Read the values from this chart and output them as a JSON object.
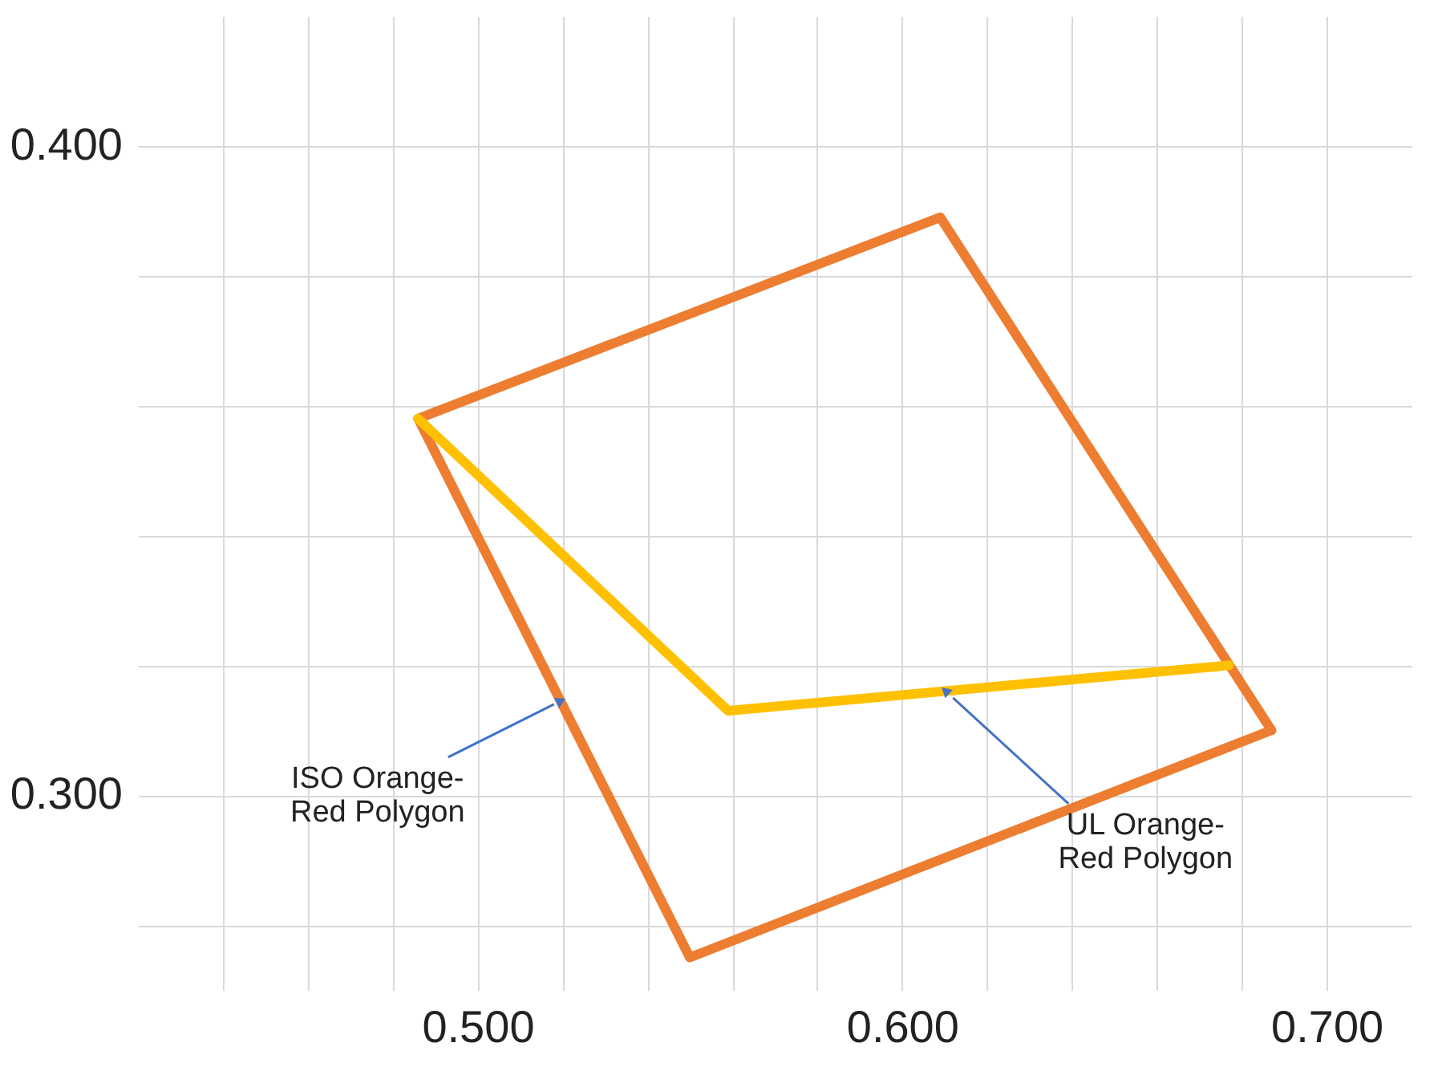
{
  "chart_data": {
    "type": "line",
    "xlim": [
      0.42,
      0.72
    ],
    "ylim": [
      0.27,
      0.42
    ],
    "xticks": [
      {
        "value": 0.44,
        "label": null
      },
      {
        "value": 0.46,
        "label": null
      },
      {
        "value": 0.48,
        "label": null
      },
      {
        "value": 0.5,
        "label": "0.500"
      },
      {
        "value": 0.52,
        "label": null
      },
      {
        "value": 0.54,
        "label": null
      },
      {
        "value": 0.56,
        "label": null
      },
      {
        "value": 0.58,
        "label": null
      },
      {
        "value": 0.6,
        "label": "0.600"
      },
      {
        "value": 0.62,
        "label": null
      },
      {
        "value": 0.64,
        "label": null
      },
      {
        "value": 0.66,
        "label": null
      },
      {
        "value": 0.68,
        "label": null
      },
      {
        "value": 0.7,
        "label": "0.700"
      }
    ],
    "yticks": [
      {
        "value": 0.28,
        "label": null
      },
      {
        "value": 0.3,
        "label": "0.300"
      },
      {
        "value": 0.32,
        "label": null
      },
      {
        "value": 0.34,
        "label": null
      },
      {
        "value": 0.36,
        "label": null
      },
      {
        "value": 0.38,
        "label": null
      },
      {
        "value": 0.4,
        "label": "0.400"
      }
    ],
    "grid": true,
    "marker": "none",
    "line_style": "solid",
    "series": [
      {
        "color": "#ed7d31",
        "x": [
          0.486,
          0.609,
          0.687
        ],
        "values": [
          0.358,
          0.389,
          0.31
        ]
      },
      {
        "color": "#ed7d31",
        "x": [
          0.486,
          0.55,
          0.687
        ],
        "values": [
          0.358,
          0.275,
          0.31
        ]
      },
      {
        "color": "#ffc000",
        "x": [
          0.486,
          0.559,
          0.677
        ],
        "values": [
          0.358,
          0.313,
          0.32
        ]
      }
    ],
    "annotations": [
      {
        "text": "ISO Orange-Red Polygon",
        "x": 0.518,
        "y": 0.314
      },
      {
        "text": "UL Orange-Red Polygon",
        "x": 0.612,
        "y": 0.315
      }
    ]
  }
}
